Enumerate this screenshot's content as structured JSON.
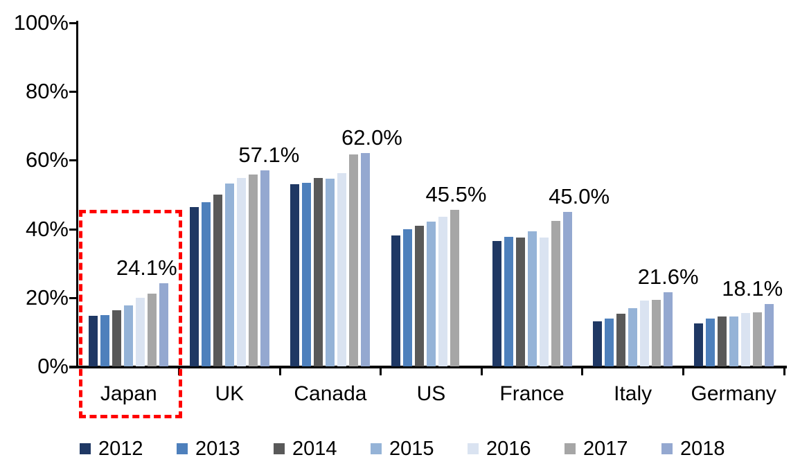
{
  "chart_data": {
    "type": "bar",
    "title": "",
    "xlabel": "",
    "ylabel": "",
    "categories": [
      "Japan",
      "UK",
      "Canada",
      "US",
      "France",
      "Italy",
      "Germany"
    ],
    "series": [
      {
        "name": "2012",
        "color": "#1F3864",
        "values": [
          14.7,
          46.3,
          53.0,
          38.2,
          36.5,
          13.2,
          12.4
        ]
      },
      {
        "name": "2013",
        "color": "#4E80BC",
        "values": [
          14.9,
          47.8,
          53.4,
          40.0,
          37.7,
          14.0,
          13.9
        ]
      },
      {
        "name": "2014",
        "color": "#595959",
        "values": [
          16.4,
          50.0,
          54.9,
          41.0,
          37.6,
          15.4,
          14.5
        ]
      },
      {
        "name": "2015",
        "color": "#95B3D7",
        "values": [
          17.8,
          53.3,
          54.7,
          42.1,
          39.3,
          16.9,
          14.6
        ]
      },
      {
        "name": "2016",
        "color": "#DAE3F1",
        "values": [
          20.0,
          54.8,
          56.2,
          43.5,
          37.4,
          19.1,
          15.5
        ]
      },
      {
        "name": "2017",
        "color": "#A6A6A6",
        "values": [
          21.1,
          55.9,
          61.7,
          45.5,
          42.3,
          19.3,
          15.8
        ]
      },
      {
        "name": "2018",
        "color": "#94A8D0",
        "values": [
          24.1,
          57.1,
          62.0,
          null,
          45.0,
          21.6,
          18.1
        ]
      }
    ],
    "data_labels": [
      "24.1%",
      "57.1%",
      "62.0%",
      "45.5%",
      "45.0%",
      "21.6%",
      "18.1%"
    ],
    "y_axis": {
      "min": 0,
      "max": 100,
      "step": 20,
      "tick_labels": [
        "0%",
        "20%",
        "40%",
        "60%",
        "80%",
        "100%"
      ]
    },
    "grid": false,
    "legend": {
      "position": "bottom",
      "entries": [
        "2012",
        "2013",
        "2014",
        "2015",
        "2016",
        "2017",
        "2018"
      ]
    },
    "highlight": {
      "category": "Japan",
      "shape": "dashed-rectangle",
      "color": "#FF0000"
    }
  }
}
